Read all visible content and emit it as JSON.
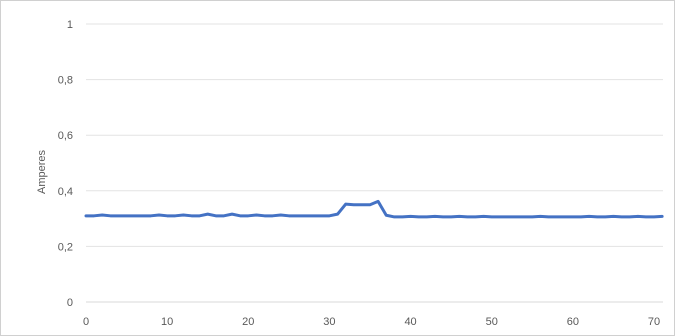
{
  "chart_data": {
    "type": "line",
    "title": "",
    "xlabel": "",
    "ylabel": "Amperes",
    "xlim": [
      0,
      70
    ],
    "ylim": [
      0,
      1
    ],
    "x_ticks": [
      "0",
      "10",
      "20",
      "30",
      "40",
      "50",
      "60",
      "70"
    ],
    "y_ticks": [
      "0",
      "0,2",
      "0,4",
      "0,6",
      "0,8",
      "1"
    ],
    "grid": "horizontal",
    "legend": "none",
    "series": [
      {
        "color": "#4472c4",
        "x": [
          0,
          1,
          2,
          3,
          4,
          5,
          6,
          7,
          8,
          9,
          10,
          11,
          12,
          13,
          14,
          15,
          16,
          17,
          18,
          19,
          20,
          21,
          22,
          23,
          24,
          25,
          26,
          27,
          28,
          29,
          30,
          31,
          32,
          33,
          34,
          35,
          36,
          37,
          38,
          39,
          40,
          41,
          42,
          43,
          44,
          45,
          46,
          47,
          48,
          49,
          50,
          51,
          52,
          53,
          54,
          55,
          56,
          57,
          58,
          59,
          60,
          61,
          62,
          63,
          64,
          65,
          66,
          67,
          68,
          69,
          70,
          71
        ],
        "values": [
          0.31,
          0.31,
          0.313,
          0.31,
          0.31,
          0.31,
          0.31,
          0.31,
          0.31,
          0.313,
          0.31,
          0.31,
          0.313,
          0.31,
          0.31,
          0.316,
          0.31,
          0.31,
          0.316,
          0.31,
          0.31,
          0.313,
          0.31,
          0.31,
          0.313,
          0.31,
          0.31,
          0.31,
          0.31,
          0.31,
          0.31,
          0.316,
          0.352,
          0.35,
          0.35,
          0.35,
          0.362,
          0.312,
          0.306,
          0.306,
          0.308,
          0.306,
          0.306,
          0.308,
          0.306,
          0.306,
          0.308,
          0.306,
          0.306,
          0.308,
          0.306,
          0.306,
          0.306,
          0.306,
          0.306,
          0.306,
          0.308,
          0.306,
          0.306,
          0.306,
          0.306,
          0.306,
          0.308,
          0.306,
          0.306,
          0.308,
          0.306,
          0.306,
          0.308,
          0.306,
          0.306,
          0.308
        ]
      }
    ]
  }
}
